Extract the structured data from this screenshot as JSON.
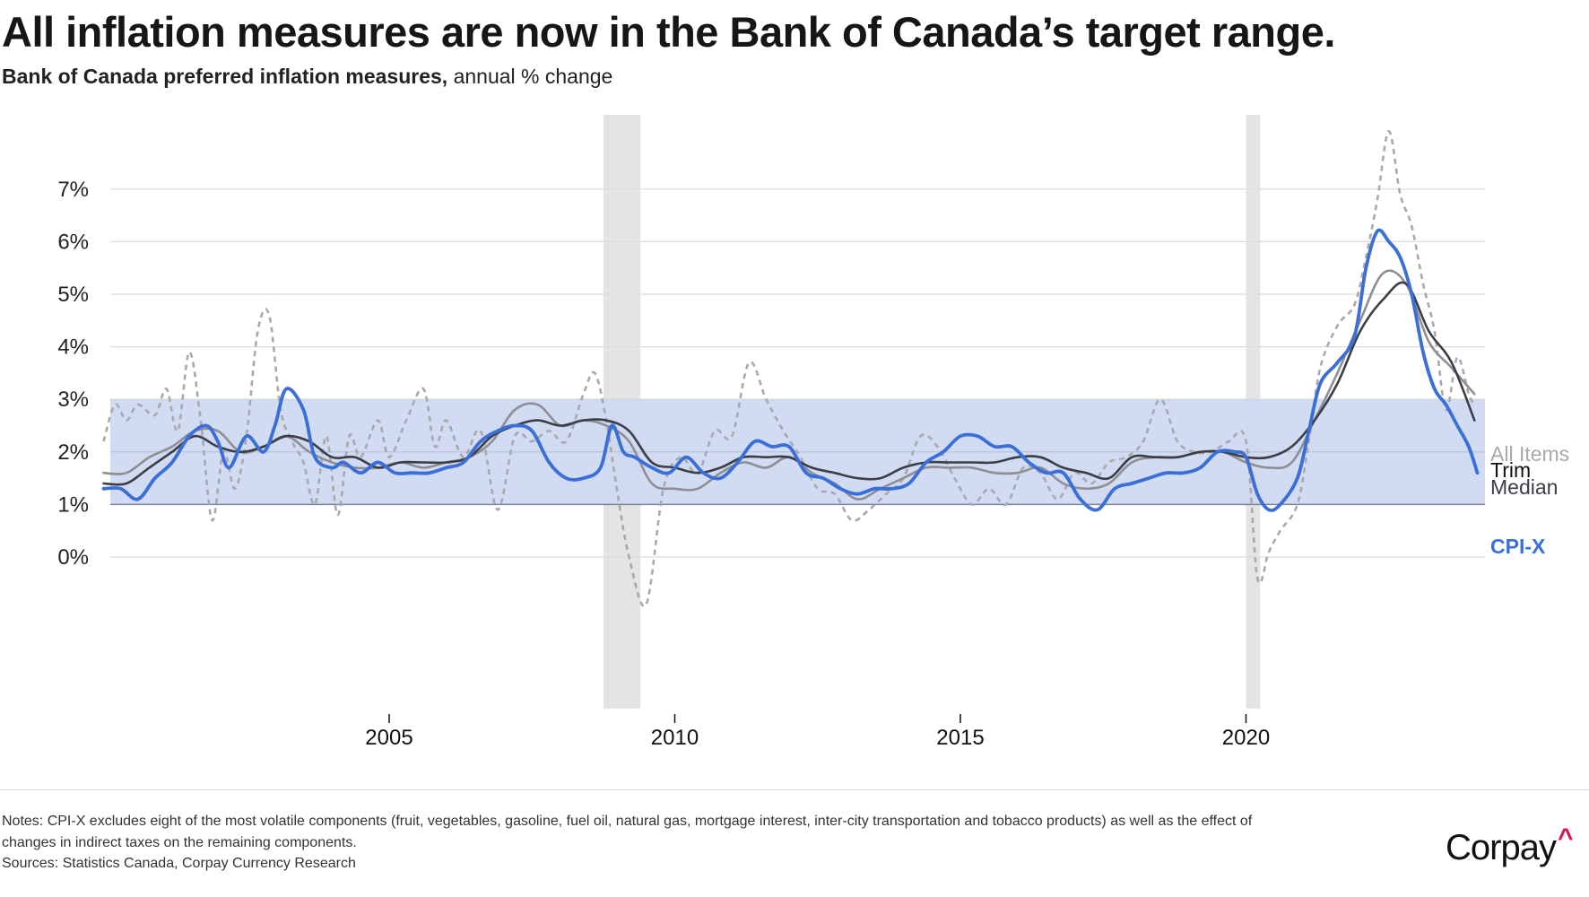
{
  "header": {
    "title": "All inflation measures are now in the Bank of Canada’s target range.",
    "subtitle_bold": "Bank of Canada preferred inflation measures,",
    "subtitle_regular": " annual % change"
  },
  "footer": {
    "notes_line1": "Notes: CPI-X excludes eight of the most volatile components (fruit, vegetables, gasoline, fuel oil, natural gas, mortgage interest, inter-city transportation and tobacco products) as well as the effect of",
    "notes_line2": "changes in indirect taxes on the remaining components.",
    "sources": "Sources: Statistics Canada, Corpay Currency Research",
    "logo_text": "Corpay",
    "logo_mark": "^",
    "logo_mark_color": "#d4145a"
  },
  "chart_data": {
    "type": "line",
    "title": "All inflation measures are now in the Bank of Canada’s target range.",
    "subtitle": "Bank of Canada preferred inflation measures, annual % change",
    "xlabel": "",
    "ylabel": "",
    "xlim": [
      2000.0,
      2024.1
    ],
    "ylim": [
      -1.0,
      8.3
    ],
    "y_ticks": [
      0,
      1,
      2,
      3,
      4,
      5,
      6,
      7
    ],
    "y_tick_labels": [
      "0%",
      "1%",
      "2%",
      "3%",
      "4%",
      "5%",
      "6%",
      "7%"
    ],
    "x_ticks": [
      2005,
      2010,
      2015,
      2020
    ],
    "x_tick_labels": [
      "2005",
      "2010",
      "2015",
      "2020"
    ],
    "grid": "horizontal",
    "target_band": {
      "low": 1,
      "high": 3,
      "color": "#cdd8f1",
      "edge_color": "#9aa5c3"
    },
    "recessions": [
      {
        "start": 2008.75,
        "end": 2009.4
      },
      {
        "start": 2020.0,
        "end": 2020.25
      }
    ],
    "legend": "direct-labels-right",
    "series": [
      {
        "name": "All Items",
        "color": "#a9a9ad",
        "style": "dotted",
        "x": [
          2000.0,
          2000.2,
          2000.4,
          2000.6,
          2000.9,
          2001.1,
          2001.3,
          2001.5,
          2001.7,
          2001.9,
          2002.1,
          2002.3,
          2002.5,
          2002.7,
          2002.9,
          2003.1,
          2003.3,
          2003.5,
          2003.7,
          2003.9,
          2004.1,
          2004.3,
          2004.5,
          2004.8,
          2005.0,
          2005.3,
          2005.6,
          2005.8,
          2006.0,
          2006.3,
          2006.6,
          2006.9,
          2007.2,
          2007.5,
          2007.8,
          2008.1,
          2008.4,
          2008.6,
          2008.8,
          2009.0,
          2009.2,
          2009.5,
          2009.8,
          2010.1,
          2010.4,
          2010.7,
          2011.0,
          2011.3,
          2011.6,
          2011.9,
          2012.2,
          2012.5,
          2012.8,
          2013.1,
          2013.4,
          2013.7,
          2014.0,
          2014.3,
          2014.6,
          2014.9,
          2015.2,
          2015.5,
          2015.8,
          2016.1,
          2016.4,
          2016.7,
          2017.0,
          2017.3,
          2017.6,
          2017.9,
          2018.2,
          2018.5,
          2018.8,
          2019.1,
          2019.4,
          2019.7,
          2020.0,
          2020.2,
          2020.4,
          2020.6,
          2020.9,
          2021.1,
          2021.3,
          2021.6,
          2021.9,
          2022.1,
          2022.3,
          2022.5,
          2022.7,
          2022.9,
          2023.1,
          2023.3,
          2023.5,
          2023.7,
          2023.9,
          2024.0
        ],
        "values": [
          2.2,
          2.9,
          2.6,
          2.9,
          2.7,
          3.2,
          2.4,
          3.9,
          2.6,
          0.7,
          2.0,
          1.3,
          2.3,
          4.3,
          4.6,
          2.8,
          2.2,
          1.8,
          1.0,
          2.3,
          0.8,
          2.3,
          1.9,
          2.6,
          1.9,
          2.6,
          3.2,
          2.1,
          2.6,
          1.9,
          2.4,
          0.9,
          2.3,
          2.2,
          2.4,
          2.2,
          3.1,
          3.5,
          2.6,
          1.2,
          0.0,
          -0.9,
          1.3,
          1.9,
          1.6,
          2.4,
          2.3,
          3.7,
          3.0,
          2.4,
          1.9,
          1.3,
          1.2,
          0.7,
          0.9,
          1.2,
          1.5,
          2.3,
          2.1,
          1.5,
          1.0,
          1.3,
          1.0,
          1.7,
          1.6,
          1.1,
          1.6,
          1.4,
          1.8,
          1.9,
          2.2,
          3.0,
          2.2,
          2.0,
          2.0,
          2.2,
          2.2,
          -0.4,
          0.1,
          0.5,
          1.0,
          2.2,
          3.6,
          4.4,
          4.8,
          5.7,
          6.8,
          8.1,
          6.9,
          6.3,
          5.2,
          4.3,
          2.8,
          3.8,
          3.1,
          2.9
        ]
      },
      {
        "name": "Trim",
        "color": "#8e8e93",
        "style": "solid",
        "x": [
          2000.0,
          2000.4,
          2000.8,
          2001.2,
          2001.6,
          2002.0,
          2002.4,
          2002.8,
          2003.2,
          2003.6,
          2004.0,
          2004.4,
          2004.8,
          2005.2,
          2005.6,
          2006.0,
          2006.4,
          2006.8,
          2007.2,
          2007.6,
          2008.0,
          2008.4,
          2008.8,
          2009.2,
          2009.6,
          2010.0,
          2010.4,
          2010.8,
          2011.2,
          2011.6,
          2012.0,
          2012.4,
          2012.8,
          2013.2,
          2013.6,
          2014.0,
          2014.4,
          2014.8,
          2015.2,
          2015.6,
          2016.0,
          2016.4,
          2016.8,
          2017.2,
          2017.6,
          2018.0,
          2018.4,
          2018.8,
          2019.2,
          2019.6,
          2020.0,
          2020.4,
          2020.8,
          2021.2,
          2021.6,
          2022.0,
          2022.4,
          2022.8,
          2023.2,
          2023.6,
          2024.0
        ],
        "values": [
          1.6,
          1.6,
          1.9,
          2.1,
          2.4,
          2.4,
          2.0,
          2.1,
          2.3,
          2.0,
          1.8,
          1.7,
          1.7,
          1.8,
          1.7,
          1.8,
          1.9,
          2.2,
          2.8,
          2.9,
          2.5,
          2.6,
          2.5,
          2.2,
          1.4,
          1.3,
          1.3,
          1.6,
          1.8,
          1.7,
          1.9,
          1.6,
          1.4,
          1.1,
          1.3,
          1.5,
          1.7,
          1.7,
          1.7,
          1.6,
          1.6,
          1.7,
          1.4,
          1.3,
          1.4,
          1.8,
          1.9,
          1.9,
          2.0,
          2.0,
          1.8,
          1.7,
          1.8,
          2.6,
          3.5,
          4.5,
          5.4,
          5.2,
          4.1,
          3.6,
          3.1
        ]
      },
      {
        "name": "Median",
        "color": "#3b3e46",
        "style": "solid",
        "x": [
          2000.0,
          2000.4,
          2000.8,
          2001.2,
          2001.6,
          2002.0,
          2002.4,
          2002.8,
          2003.2,
          2003.6,
          2004.0,
          2004.4,
          2004.8,
          2005.2,
          2005.6,
          2006.0,
          2006.4,
          2006.8,
          2007.2,
          2007.6,
          2008.0,
          2008.4,
          2008.8,
          2009.2,
          2009.6,
          2010.0,
          2010.4,
          2010.8,
          2011.2,
          2011.6,
          2012.0,
          2012.4,
          2012.8,
          2013.2,
          2013.6,
          2014.0,
          2014.4,
          2014.8,
          2015.2,
          2015.6,
          2016.0,
          2016.4,
          2016.8,
          2017.2,
          2017.6,
          2018.0,
          2018.4,
          2018.8,
          2019.2,
          2019.6,
          2020.0,
          2020.4,
          2020.8,
          2021.2,
          2021.6,
          2022.0,
          2022.4,
          2022.8,
          2023.2,
          2023.6,
          2024.0
        ],
        "values": [
          1.4,
          1.4,
          1.7,
          2.0,
          2.3,
          2.1,
          2.0,
          2.1,
          2.3,
          2.2,
          1.9,
          1.9,
          1.7,
          1.8,
          1.8,
          1.8,
          1.9,
          2.3,
          2.5,
          2.6,
          2.5,
          2.6,
          2.6,
          2.4,
          1.8,
          1.7,
          1.6,
          1.7,
          1.9,
          1.9,
          1.9,
          1.7,
          1.6,
          1.5,
          1.5,
          1.7,
          1.8,
          1.8,
          1.8,
          1.8,
          1.9,
          1.9,
          1.7,
          1.6,
          1.5,
          1.9,
          1.9,
          1.9,
          2.0,
          2.0,
          1.9,
          1.9,
          2.1,
          2.6,
          3.3,
          4.3,
          4.9,
          5.2,
          4.3,
          3.7,
          2.6
        ]
      },
      {
        "name": "CPI-X",
        "color": "#3a6fd8",
        "style": "solid-bold",
        "x": [
          2000.0,
          2000.3,
          2000.6,
          2000.9,
          2001.2,
          2001.5,
          2001.8,
          2002.0,
          2002.2,
          2002.5,
          2002.8,
          2003.0,
          2003.2,
          2003.5,
          2003.7,
          2004.0,
          2004.2,
          2004.5,
          2004.8,
          2005.1,
          2005.4,
          2005.7,
          2006.0,
          2006.3,
          2006.6,
          2006.9,
          2007.2,
          2007.5,
          2007.8,
          2008.1,
          2008.4,
          2008.7,
          2008.9,
          2009.1,
          2009.3,
          2009.6,
          2009.9,
          2010.2,
          2010.5,
          2010.8,
          2011.1,
          2011.4,
          2011.7,
          2012.0,
          2012.3,
          2012.6,
          2012.9,
          2013.2,
          2013.5,
          2013.8,
          2014.1,
          2014.4,
          2014.7,
          2015.0,
          2015.3,
          2015.6,
          2015.9,
          2016.2,
          2016.5,
          2016.8,
          2017.1,
          2017.4,
          2017.7,
          2018.0,
          2018.3,
          2018.6,
          2018.9,
          2019.2,
          2019.5,
          2019.8,
          2020.0,
          2020.2,
          2020.4,
          2020.6,
          2020.9,
          2021.1,
          2021.3,
          2021.6,
          2021.9,
          2022.1,
          2022.3,
          2022.5,
          2022.7,
          2022.9,
          2023.1,
          2023.3,
          2023.5,
          2023.7,
          2023.9,
          2024.05
        ],
        "values": [
          1.3,
          1.3,
          1.1,
          1.5,
          1.8,
          2.3,
          2.5,
          2.2,
          1.7,
          2.3,
          2.0,
          2.5,
          3.2,
          2.8,
          1.9,
          1.7,
          1.8,
          1.6,
          1.8,
          1.6,
          1.6,
          1.6,
          1.7,
          1.8,
          2.2,
          2.4,
          2.5,
          2.4,
          1.8,
          1.5,
          1.5,
          1.7,
          2.5,
          2.0,
          1.9,
          1.7,
          1.6,
          1.9,
          1.6,
          1.5,
          1.8,
          2.2,
          2.1,
          2.1,
          1.6,
          1.5,
          1.3,
          1.2,
          1.3,
          1.3,
          1.4,
          1.8,
          2.0,
          2.3,
          2.3,
          2.1,
          2.1,
          1.8,
          1.6,
          1.6,
          1.1,
          0.9,
          1.3,
          1.4,
          1.5,
          1.6,
          1.6,
          1.7,
          2.0,
          2.0,
          1.9,
          1.2,
          0.9,
          1.0,
          1.5,
          2.4,
          3.3,
          3.7,
          4.2,
          5.5,
          6.2,
          6.0,
          5.7,
          5.0,
          3.9,
          3.2,
          2.9,
          2.5,
          2.1,
          1.6
        ]
      }
    ],
    "end_labels": [
      "All Items",
      "Trim",
      "Median",
      "CPI-X"
    ]
  }
}
